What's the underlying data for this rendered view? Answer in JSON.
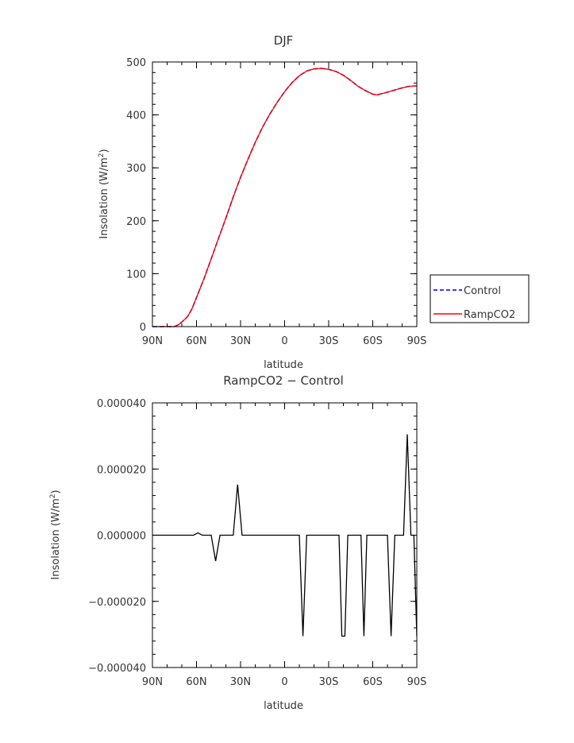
{
  "chart_data": [
    {
      "type": "line",
      "title": "DJF",
      "xlabel": "latitude",
      "ylabel": "Insolation (W/m",
      "ylabel_sup": "2",
      "ylabel_close": ")",
      "xlim": [
        90,
        -90
      ],
      "ylim": [
        0,
        500
      ],
      "xtick_values": [
        90,
        60,
        30,
        0,
        -30,
        -60,
        -90
      ],
      "xtick_labels": [
        "90N",
        "60N",
        "30N",
        "0",
        "30S",
        "60S",
        "90S"
      ],
      "ytick_values": [
        0,
        100,
        200,
        300,
        400,
        500
      ],
      "ytick_labels": [
        "0",
        "100",
        "200",
        "300",
        "400",
        "500"
      ],
      "legend": {
        "placement": "right",
        "entries": [
          "Control",
          "RampCO2"
        ]
      },
      "x": [
        90,
        85,
        80,
        75,
        72,
        69,
        66,
        63,
        60,
        55,
        50,
        45,
        40,
        35,
        30,
        25,
        20,
        15,
        10,
        5,
        0,
        -5,
        -10,
        -15,
        -20,
        -25,
        -30,
        -35,
        -40,
        -45,
        -50,
        -55,
        -60,
        -63,
        -66,
        -70,
        -75,
        -80,
        -85,
        -90
      ],
      "series": [
        {
          "name": "Control",
          "color": "#0000cc",
          "dash": "dashed",
          "values": [
            0,
            0,
            0,
            0,
            4,
            11,
            19,
            34,
            55,
            90,
            128,
            167,
            205,
            245,
            282,
            316,
            348,
            377,
            402,
            424,
            444,
            461,
            474,
            483,
            487,
            488,
            486,
            482,
            475,
            465,
            454,
            446,
            439,
            438,
            440,
            443,
            447,
            451,
            454,
            455
          ]
        },
        {
          "name": "RampCO2",
          "color": "#ff0000",
          "dash": "solid",
          "values": [
            0,
            0,
            0,
            0,
            4,
            11,
            19,
            34,
            55,
            90,
            128,
            167,
            205,
            245,
            282,
            316,
            348,
            377,
            402,
            424,
            444,
            461,
            474,
            483,
            487,
            488,
            486,
            482,
            475,
            465,
            454,
            446,
            439,
            438,
            440,
            443,
            447,
            451,
            454,
            455
          ]
        }
      ]
    },
    {
      "type": "line",
      "title": "RampCO2 − Control",
      "xlabel": "latitude",
      "ylabel": "Insolation (W/m",
      "ylabel_sup": "2",
      "ylabel_close": ")",
      "xlim": [
        90,
        -90
      ],
      "ylim": [
        -4e-05,
        4e-05
      ],
      "xtick_values": [
        90,
        60,
        30,
        0,
        -30,
        -60,
        -90
      ],
      "xtick_labels": [
        "90N",
        "60N",
        "30N",
        "0",
        "30S",
        "60S",
        "90S"
      ],
      "ytick_values": [
        4e-05,
        2e-05,
        0,
        -2e-05,
        -4e-05
      ],
      "ytick_labels": [
        "0.000040",
        "0.000020",
        "0.000000",
        "−0.000020",
        "−0.000040"
      ],
      "x": [
        90,
        62,
        59,
        56,
        50,
        47,
        44,
        35,
        32,
        29,
        -10,
        -12.5,
        -15,
        -37,
        -39,
        -41,
        -43,
        -45,
        -52,
        -54,
        -56,
        -70,
        -72.5,
        -75,
        -81,
        -83.5,
        -86,
        -88,
        -90
      ],
      "series": [
        {
          "name": "",
          "color": "#000000",
          "dash": "solid",
          "values": [
            0,
            0,
            7e-07,
            0,
            0,
            -7.8e-06,
            0,
            0,
            1.53e-05,
            0,
            0,
            -3.05e-05,
            0,
            0,
            -3.05e-05,
            -3.05e-05,
            0,
            0,
            0,
            -3.05e-05,
            0,
            0,
            -3.05e-05,
            0,
            0,
            3.05e-05,
            0,
            0,
            -3.05e-05
          ]
        }
      ]
    }
  ]
}
